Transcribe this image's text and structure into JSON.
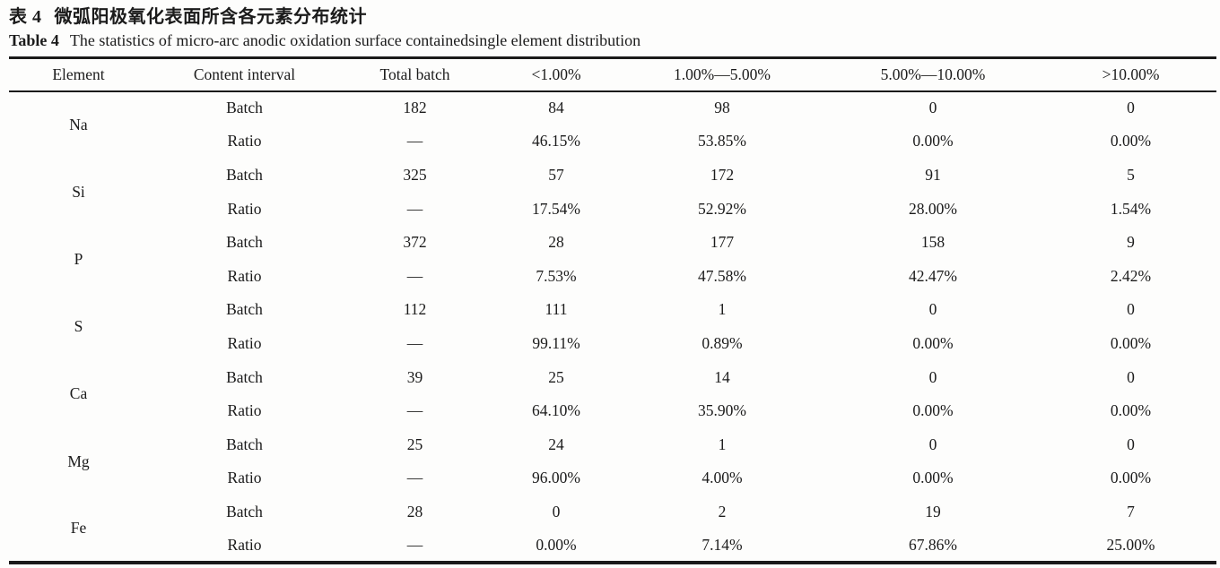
{
  "captions": {
    "zh_label": "表 4",
    "zh_text": "微弧阳极氧化表面所含各元素分布统计",
    "en_label": "Table 4",
    "en_text": "The statistics of micro-arc anodic oxidation surface containedsingle element distribution"
  },
  "table": {
    "headers": {
      "element": "Element",
      "content_interval": "Content interval",
      "total_batch": "Total batch",
      "lt_1": "<1.00%",
      "r1_5": "1.00%—5.00%",
      "r5_10": "5.00%—10.00%",
      "gt_10": ">10.00%"
    },
    "row_labels": {
      "batch": "Batch",
      "ratio": "Ratio"
    },
    "rows": [
      {
        "element": "Na",
        "batch": [
          "182",
          "84",
          "98",
          "0",
          "0"
        ],
        "ratio": [
          "—",
          "46.15%",
          "53.85%",
          "0.00%",
          "0.00%"
        ]
      },
      {
        "element": "Si",
        "batch": [
          "325",
          "57",
          "172",
          "91",
          "5"
        ],
        "ratio": [
          "—",
          "17.54%",
          "52.92%",
          "28.00%",
          "1.54%"
        ]
      },
      {
        "element": "P",
        "batch": [
          "372",
          "28",
          "177",
          "158",
          "9"
        ],
        "ratio": [
          "—",
          "7.53%",
          "47.58%",
          "42.47%",
          "2.42%"
        ]
      },
      {
        "element": "S",
        "batch": [
          "112",
          "111",
          "1",
          "0",
          "0"
        ],
        "ratio": [
          "—",
          "99.11%",
          "0.89%",
          "0.00%",
          "0.00%"
        ]
      },
      {
        "element": "Ca",
        "batch": [
          "39",
          "25",
          "14",
          "0",
          "0"
        ],
        "ratio": [
          "—",
          "64.10%",
          "35.90%",
          "0.00%",
          "0.00%"
        ]
      },
      {
        "element": "Mg",
        "batch": [
          "25",
          "24",
          "1",
          "0",
          "0"
        ],
        "ratio": [
          "—",
          "96.00%",
          "4.00%",
          "0.00%",
          "0.00%"
        ]
      },
      {
        "element": "Fe",
        "batch": [
          "28",
          "0",
          "2",
          "19",
          "7"
        ],
        "ratio": [
          "—",
          "0.00%",
          "7.14%",
          "67.86%",
          "25.00%"
        ]
      }
    ]
  },
  "colors": {
    "text": "#1b1b1b",
    "rule": "#1a1a1a",
    "background": "#fdfdfc"
  }
}
